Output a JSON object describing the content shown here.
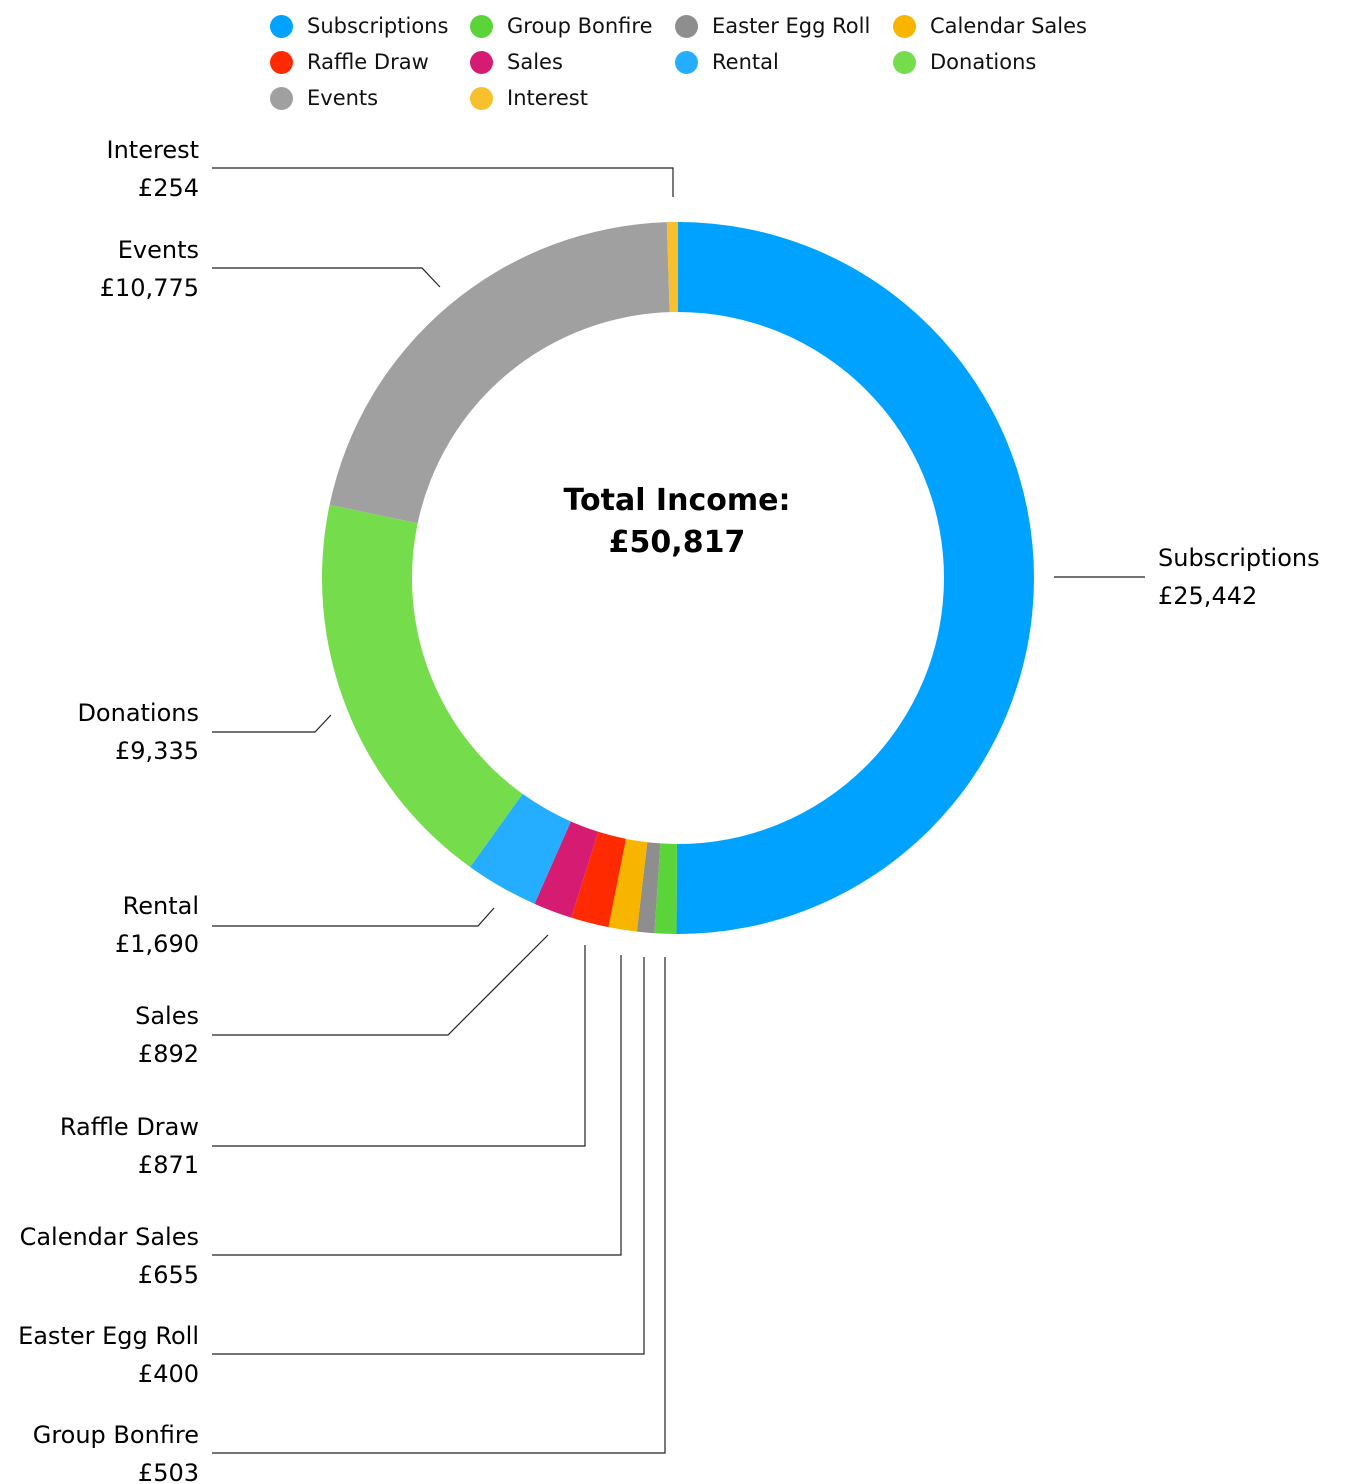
{
  "chart_data": {
    "type": "donut",
    "center_title_line1": "Total Income:",
    "center_title_line2": "£50,817",
    "legend_position": "top",
    "series": [
      {
        "name": "Subscriptions",
        "value": 25442,
        "label": "£25,442",
        "color": "#00A2FF"
      },
      {
        "name": "Group Bonfire",
        "value": 503,
        "label": "£503",
        "color": "#5BD43A"
      },
      {
        "name": "Easter Egg Roll",
        "value": 400,
        "label": "£400",
        "color": "#8E8E8E"
      },
      {
        "name": "Calendar Sales",
        "value": 655,
        "label": "£655",
        "color": "#F7B500"
      },
      {
        "name": "Raffle Draw",
        "value": 871,
        "label": "£871",
        "color": "#FF2A00"
      },
      {
        "name": "Sales",
        "value": 892,
        "label": "£892",
        "color": "#D61C72"
      },
      {
        "name": "Rental",
        "value": 1690,
        "label": "£1,690",
        "color": "#25ADFF"
      },
      {
        "name": "Donations",
        "value": 9335,
        "label": "£9,335",
        "color": "#75DD4C"
      },
      {
        "name": "Events",
        "value": 10775,
        "label": "£10,775",
        "color": "#A0A0A0"
      },
      {
        "name": "Interest",
        "value": 254,
        "label": "£254",
        "color": "#F9C02D"
      }
    ],
    "legend_order": [
      "Subscriptions",
      "Group Bonfire",
      "Easter Egg Roll",
      "Calendar Sales",
      "Raffle Draw",
      "Sales",
      "Rental",
      "Donations",
      "Events",
      "Interest"
    ]
  }
}
